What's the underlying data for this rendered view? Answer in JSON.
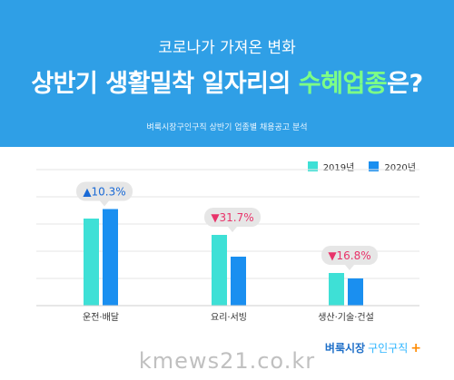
{
  "header": {
    "subtitle": "코로나가 가져온 변화",
    "title_main": "상반기 생활밀착 일자리의 ",
    "title_highlight": "수혜업종",
    "title_end": "은?",
    "note": "벼룩시장구인구직 상반기 업종별 채용공고 분석"
  },
  "colors": {
    "series_2019": "#3ee0d6",
    "series_2020": "#1a8ff0",
    "header_bg": "#2f9fe6",
    "up": "#1a6ad6",
    "down": "#e8336a"
  },
  "chart_data": {
    "type": "bar",
    "categories": [
      "운전·배달",
      "요리·서빙",
      "생산·기술·건설"
    ],
    "series": [
      {
        "name": "2019년",
        "values": [
          64,
          52,
          24
        ]
      },
      {
        "name": "2020년",
        "values": [
          71,
          36,
          20
        ]
      }
    ],
    "changes": [
      {
        "label": "▲10.3%",
        "direction": "up"
      },
      {
        "label": "▼31.7%",
        "direction": "down"
      },
      {
        "label": "▼16.8%",
        "direction": "down"
      }
    ],
    "ylim": [
      0,
      100
    ],
    "grid": true,
    "legend_position": "top-right"
  },
  "brand": {
    "part1": "벼룩시장",
    "part2": "구인구직",
    "mark": "+"
  },
  "watermark": "kmews21.co.kr"
}
